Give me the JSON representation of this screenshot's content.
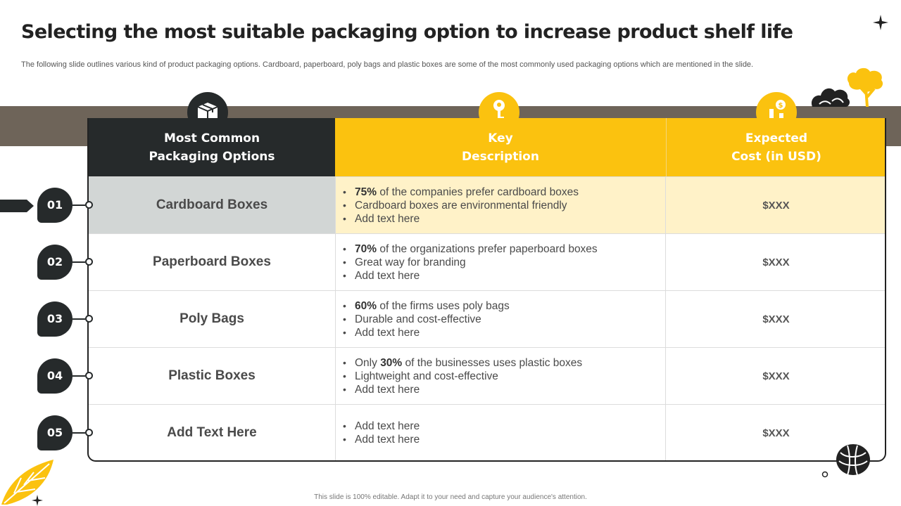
{
  "header": {
    "title": "Selecting the most suitable packaging option to increase product shelf life",
    "subtitle": "The following slide outlines various kind of product packaging options. Cardboard, paperboard, poly bags and plastic boxes are some of the most commonly used packaging options which are mentioned in the slide."
  },
  "table": {
    "columns": [
      {
        "label": "Most Common\nPackaging Options",
        "icon": "box-icon"
      },
      {
        "label": "Key\nDescription",
        "icon": "key-icon"
      },
      {
        "label": "Expected\nCost (in USD)",
        "icon": "cost-down-icon"
      }
    ],
    "rows": [
      {
        "num": "01",
        "option": "Cardboard Boxes",
        "cost": "$XXX",
        "bullets": [
          {
            "pre": "",
            "bold": "75%",
            "post": " of the companies prefer cardboard boxes"
          },
          {
            "pre": "Cardboard boxes are environmental  friendly",
            "bold": "",
            "post": ""
          },
          {
            "pre": "Add text here",
            "bold": "",
            "post": ""
          }
        ]
      },
      {
        "num": "02",
        "option": "Paperboard Boxes",
        "cost": "$XXX",
        "bullets": [
          {
            "pre": "",
            "bold": "70%",
            "post": " of the organizations prefer paperboard boxes"
          },
          {
            "pre": "Great way for branding",
            "bold": "",
            "post": ""
          },
          {
            "pre": "Add text here",
            "bold": "",
            "post": ""
          }
        ]
      },
      {
        "num": "03",
        "option": "Poly Bags",
        "cost": "$XXX",
        "bullets": [
          {
            "pre": "",
            "bold": "60%",
            "post": " of the firms uses poly bags"
          },
          {
            "pre": "Durable and cost-effective",
            "bold": "",
            "post": ""
          },
          {
            "pre": "Add text here",
            "bold": "",
            "post": ""
          }
        ]
      },
      {
        "num": "04",
        "option": "Plastic Boxes",
        "cost": "$XXX",
        "bullets": [
          {
            "pre": "Only ",
            "bold": "30%",
            "post": " of the businesses uses plastic boxes"
          },
          {
            "pre": "Lightweight and cost-effective",
            "bold": "",
            "post": ""
          },
          {
            "pre": "Add text here",
            "bold": "",
            "post": ""
          }
        ]
      },
      {
        "num": "05",
        "option": "Add Text Here",
        "cost": "$XXX",
        "bullets": [
          {
            "pre": "Add text here",
            "bold": "",
            "post": ""
          },
          {
            "pre": "Add text here",
            "bold": "",
            "post": ""
          }
        ]
      }
    ]
  },
  "footer": {
    "note": "This slide is 100% editable.  Adapt it to your need and capture your audience's attention."
  },
  "colors": {
    "accent": "#fbc20f",
    "dark": "#262a2b",
    "band": "#6e6459",
    "highlight": "#fff2c8"
  }
}
